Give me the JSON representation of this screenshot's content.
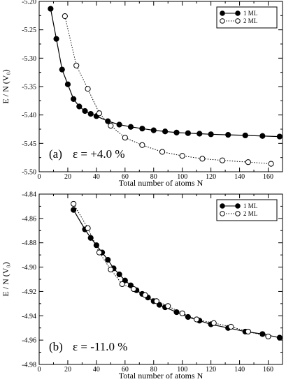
{
  "chart_data": [
    {
      "type": "line",
      "panel_label": "(a)",
      "annotation": "ε = +4.0 %",
      "xlabel": "Total number of atoms N",
      "ylabel": "E / N (V₀)",
      "xlim": [
        0,
        170
      ],
      "ylim": [
        -5.5,
        -5.2
      ],
      "xticks": [
        0,
        20,
        40,
        60,
        80,
        100,
        120,
        140,
        160
      ],
      "xtick_labels": [
        "0",
        "20",
        "40",
        "60",
        "80",
        "100",
        "120",
        "140",
        "160"
      ],
      "yticks": [
        -5.5,
        -5.45,
        -5.4,
        -5.35,
        -5.3,
        -5.25,
        -5.2
      ],
      "ytick_labels": [
        "-5.50",
        "-5.45",
        "-5.40",
        "-5.35",
        "-5.30",
        "-5.25",
        "-5.20"
      ],
      "legend_position": "top-right",
      "series": [
        {
          "name": "1 ML",
          "marker": "filled-circle",
          "line": "solid",
          "x": [
            8,
            12,
            16,
            20,
            24,
            28,
            32,
            36,
            40,
            48,
            56,
            64,
            72,
            80,
            88,
            96,
            104,
            112,
            120,
            132,
            144,
            156,
            168
          ],
          "y": [
            -5.213,
            -5.266,
            -5.32,
            -5.346,
            -5.372,
            -5.385,
            -5.393,
            -5.398,
            -5.402,
            -5.411,
            -5.417,
            -5.421,
            -5.424,
            -5.427,
            -5.429,
            -5.431,
            -5.432,
            -5.433,
            -5.434,
            -5.435,
            -5.436,
            -5.437,
            -5.438
          ]
        },
        {
          "name": "2 ML",
          "marker": "open-circle",
          "line": "dotted",
          "x": [
            18,
            26,
            34,
            42,
            50,
            60,
            72,
            86,
            100,
            114,
            128,
            146,
            162
          ],
          "y": [
            -5.226,
            -5.313,
            -5.354,
            -5.397,
            -5.419,
            -5.44,
            -5.453,
            -5.465,
            -5.472,
            -5.477,
            -5.48,
            -5.483,
            -5.486
          ]
        }
      ]
    },
    {
      "type": "line",
      "panel_label": "(b)",
      "annotation": "ε = -11.0 %",
      "xlabel": "Total number of atoms N",
      "ylabel": "E / N (V₀)",
      "xlim": [
        0,
        170
      ],
      "ylim": [
        -4.98,
        -4.84
      ],
      "xticks": [
        0,
        20,
        40,
        60,
        80,
        100,
        120,
        140,
        160
      ],
      "xtick_labels": [
        "0",
        "20",
        "40",
        "60",
        "80",
        "100",
        "120",
        "140",
        "160"
      ],
      "yticks": [
        -4.98,
        -4.96,
        -4.94,
        -4.92,
        -4.9,
        -4.88,
        -4.86,
        -4.84
      ],
      "ytick_labels": [
        "-4.98",
        "-4.96",
        "-4.94",
        "-4.92",
        "-4.90",
        "-4.88",
        "-4.86",
        "-4.84"
      ],
      "legend_position": "top-right",
      "series": [
        {
          "name": "1 ML",
          "marker": "filled-circle",
          "line": "solid",
          "x": [
            24,
            32,
            36,
            40,
            44,
            48,
            52,
            56,
            60,
            64,
            68,
            72,
            76,
            80,
            84,
            88,
            96,
            104,
            112,
            120,
            132,
            144,
            156,
            168
          ],
          "y": [
            -4.853,
            -4.869,
            -4.876,
            -4.882,
            -4.888,
            -4.894,
            -4.901,
            -4.906,
            -4.911,
            -4.915,
            -4.919,
            -4.922,
            -4.925,
            -4.928,
            -4.931,
            -4.933,
            -4.937,
            -4.941,
            -4.944,
            -4.947,
            -4.95,
            -4.953,
            -4.955,
            -4.958
          ]
        },
        {
          "name": "2 ML",
          "marker": "open-circle",
          "line": "dotted",
          "x": [
            24,
            34,
            42,
            50,
            58,
            66,
            74,
            82,
            90,
            100,
            110,
            122,
            134,
            146,
            160
          ],
          "y": [
            -4.848,
            -4.868,
            -4.888,
            -4.902,
            -4.914,
            -4.918,
            -4.923,
            -4.928,
            -4.932,
            -4.938,
            -4.943,
            -4.946,
            -4.949,
            -4.953,
            -4.957
          ]
        }
      ]
    }
  ]
}
